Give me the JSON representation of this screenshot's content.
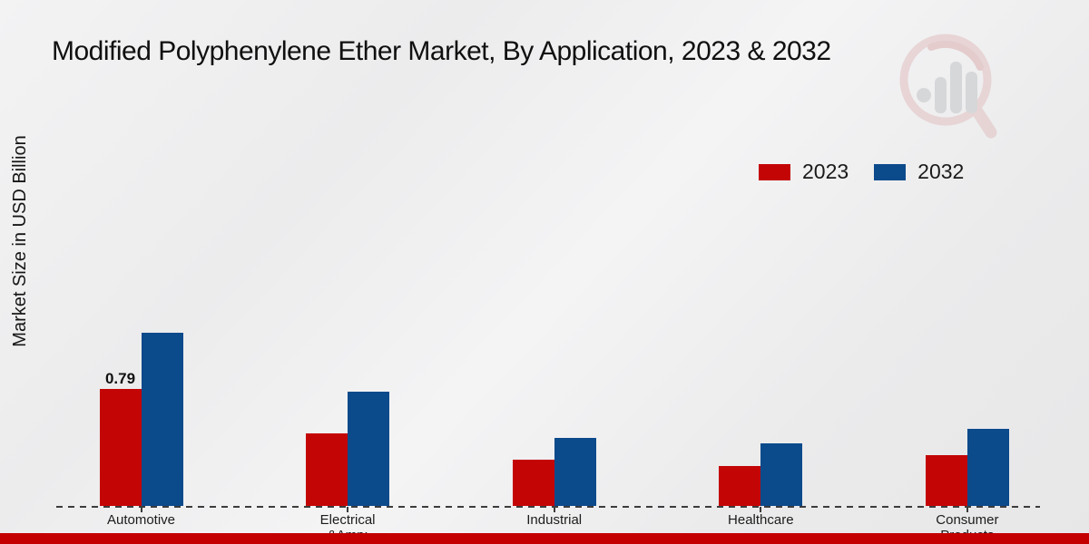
{
  "chart_data": {
    "type": "bar",
    "title": "Modified Polyphenylene Ether Market, By Application, 2023 & 2032",
    "ylabel": "Market Size in USD Billion",
    "xlabel": "",
    "categories": [
      "Automotive",
      "Electrical &Amp;",
      "Industrial",
      "Healthcare",
      "Consumer Products"
    ],
    "category_label_lines": [
      [
        "Automotive"
      ],
      [
        "Electrical",
        "&Amp;"
      ],
      [
        "Industrial"
      ],
      [
        "Healthcare"
      ],
      [
        "Consumer",
        "Products"
      ]
    ],
    "series": [
      {
        "name": "2023",
        "color": "#c40506",
        "values": [
          0.79,
          0.49,
          0.31,
          0.27,
          0.34
        ]
      },
      {
        "name": "2032",
        "color": "#0b4a8b",
        "values": [
          1.17,
          0.77,
          0.46,
          0.42,
          0.52
        ]
      }
    ],
    "annotations": [
      {
        "category_index": 0,
        "series_index": 0,
        "text": "0.79"
      }
    ],
    "ylim": [
      0,
      1.4
    ],
    "grid": false,
    "legend_position": "upper-right",
    "baseline_style": "dashed"
  },
  "decor": {
    "banner_color": "#c40000",
    "watermark": "magnifier-bar-chart-logo"
  }
}
